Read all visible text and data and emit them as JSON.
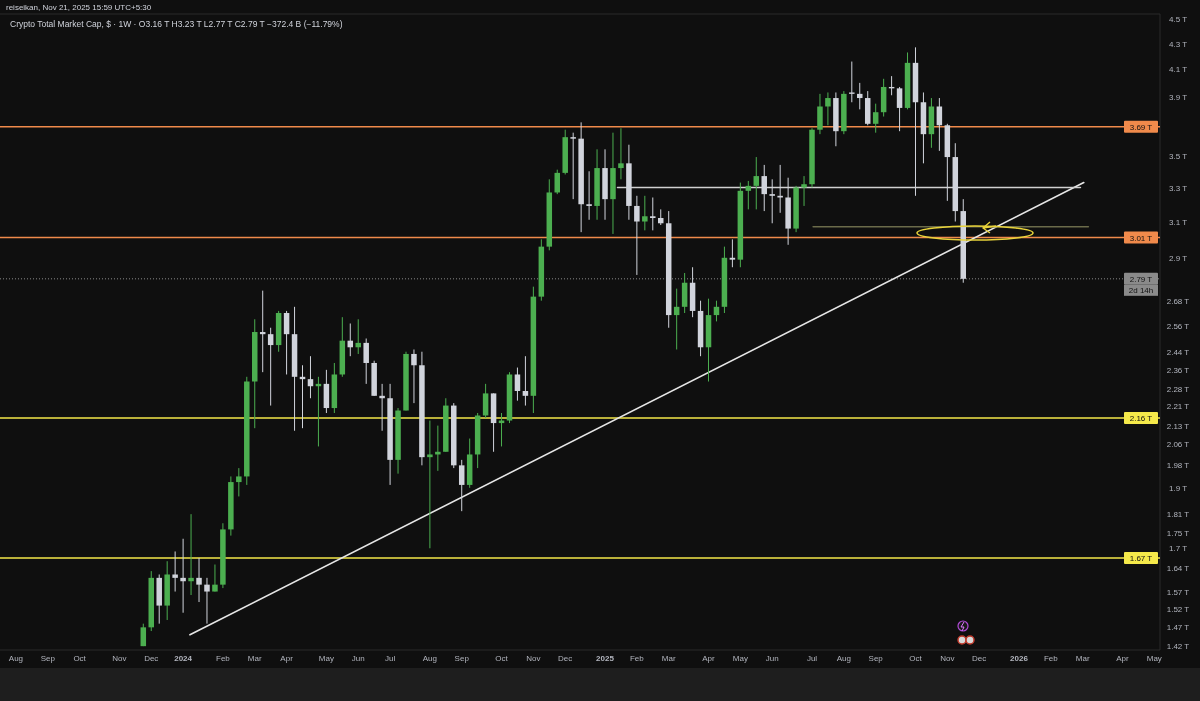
{
  "chart_data": {
    "type": "candlestick",
    "title": "Crypto Total Market Cap, $ · 1W · O3.16 T H3.23 T L2.77 T C2.79 T −372.4 B (−11.79%)",
    "subtitle": "reiseikan, Nov 21, 2025 15:59 UTC+5:30",
    "x": [
      "2023-11-27",
      "2023-12-04",
      "2023-12-11",
      "2023-12-18",
      "2023-12-25",
      "2024-01-01",
      "2024-01-08",
      "2024-01-15",
      "2024-01-22",
      "2024-01-29",
      "2024-02-05",
      "2024-02-12",
      "2024-02-19",
      "2024-02-26",
      "2024-03-04",
      "2024-03-11",
      "2024-03-18",
      "2024-03-25",
      "2024-04-01",
      "2024-04-08",
      "2024-04-15",
      "2024-04-22",
      "2024-04-29",
      "2024-05-06",
      "2024-05-13",
      "2024-05-20",
      "2024-05-27",
      "2024-06-03",
      "2024-06-10",
      "2024-06-17",
      "2024-06-24",
      "2024-07-01",
      "2024-07-08",
      "2024-07-15",
      "2024-07-22",
      "2024-07-29",
      "2024-08-05",
      "2024-08-12",
      "2024-08-19",
      "2024-08-26",
      "2024-09-02",
      "2024-09-09",
      "2024-09-16",
      "2024-09-23",
      "2024-09-30",
      "2024-10-07",
      "2024-10-14",
      "2024-10-21",
      "2024-10-28",
      "2024-11-04",
      "2024-11-11",
      "2024-11-18",
      "2024-11-25",
      "2024-12-02",
      "2024-12-09",
      "2024-12-16",
      "2024-12-23",
      "2024-12-30",
      "2025-01-06",
      "2025-01-13",
      "2025-01-20",
      "2025-01-27",
      "2025-02-03",
      "2025-02-10",
      "2025-02-17",
      "2025-02-24",
      "2025-03-03",
      "2025-03-10",
      "2025-03-17",
      "2025-03-24",
      "2025-03-31",
      "2025-04-07",
      "2025-04-14",
      "2025-04-21",
      "2025-04-28",
      "2025-05-05",
      "2025-05-12",
      "2025-05-19",
      "2025-05-26",
      "2025-06-02",
      "2025-06-09",
      "2025-06-16",
      "2025-06-23",
      "2025-06-30",
      "2025-07-07",
      "2025-07-14",
      "2025-07-21",
      "2025-07-28",
      "2025-08-04",
      "2025-08-11",
      "2025-08-18",
      "2025-08-25",
      "2025-09-01",
      "2025-09-08",
      "2025-09-15",
      "2025-09-22",
      "2025-09-29",
      "2025-10-06",
      "2025-10-13",
      "2025-10-20",
      "2025-10-27",
      "2025-11-03",
      "2025-11-10",
      "2025-11-17"
    ],
    "ohlc": [
      [
        1.42,
        1.48,
        1.42,
        1.47
      ],
      [
        1.47,
        1.63,
        1.46,
        1.61
      ],
      [
        1.61,
        1.62,
        1.48,
        1.53
      ],
      [
        1.53,
        1.66,
        1.49,
        1.62
      ],
      [
        1.62,
        1.69,
        1.57,
        1.61
      ],
      [
        1.61,
        1.73,
        1.51,
        1.6
      ],
      [
        1.6,
        1.81,
        1.56,
        1.61
      ],
      [
        1.61,
        1.67,
        1.54,
        1.59
      ],
      [
        1.59,
        1.61,
        1.48,
        1.57
      ],
      [
        1.57,
        1.65,
        1.57,
        1.59
      ],
      [
        1.59,
        1.78,
        1.58,
        1.76
      ],
      [
        1.76,
        1.94,
        1.74,
        1.92
      ],
      [
        1.92,
        1.97,
        1.87,
        1.94
      ],
      [
        1.94,
        2.33,
        1.91,
        2.31
      ],
      [
        2.31,
        2.59,
        2.12,
        2.53
      ],
      [
        2.53,
        2.73,
        2.35,
        2.52
      ],
      [
        2.52,
        2.55,
        2.21,
        2.47
      ],
      [
        2.47,
        2.63,
        2.44,
        2.62
      ],
      [
        2.62,
        2.63,
        2.34,
        2.52
      ],
      [
        2.52,
        2.65,
        2.11,
        2.33
      ],
      [
        2.33,
        2.38,
        2.12,
        2.32
      ],
      [
        2.32,
        2.42,
        2.24,
        2.29
      ],
      [
        2.29,
        2.33,
        2.05,
        2.3
      ],
      [
        2.3,
        2.36,
        2.18,
        2.2
      ],
      [
        2.2,
        2.39,
        2.18,
        2.34
      ],
      [
        2.34,
        2.6,
        2.33,
        2.49
      ],
      [
        2.49,
        2.57,
        2.42,
        2.46
      ],
      [
        2.46,
        2.59,
        2.43,
        2.48
      ],
      [
        2.48,
        2.5,
        2.3,
        2.39
      ],
      [
        2.39,
        2.4,
        2.25,
        2.25
      ],
      [
        2.25,
        2.3,
        2.11,
        2.24
      ],
      [
        2.24,
        2.3,
        1.91,
        2.0
      ],
      [
        2.0,
        2.2,
        1.95,
        2.19
      ],
      [
        2.19,
        2.44,
        2.19,
        2.43
      ],
      [
        2.43,
        2.45,
        2.22,
        2.38
      ],
      [
        2.38,
        2.44,
        1.98,
        2.01
      ],
      [
        2.01,
        2.15,
        1.7,
        2.02
      ],
      [
        2.02,
        2.13,
        1.96,
        2.03
      ],
      [
        2.03,
        2.24,
        2.03,
        2.21
      ],
      [
        2.21,
        2.22,
        1.97,
        1.98
      ],
      [
        1.98,
        2.0,
        1.82,
        1.91
      ],
      [
        1.91,
        2.08,
        1.9,
        2.02
      ],
      [
        2.02,
        2.18,
        1.97,
        2.17
      ],
      [
        2.17,
        2.3,
        2.16,
        2.26
      ],
      [
        2.26,
        2.26,
        2.03,
        2.14
      ],
      [
        2.14,
        2.18,
        2.05,
        2.15
      ],
      [
        2.15,
        2.35,
        2.14,
        2.34
      ],
      [
        2.34,
        2.37,
        2.23,
        2.27
      ],
      [
        2.27,
        2.42,
        2.21,
        2.25
      ],
      [
        2.25,
        2.75,
        2.18,
        2.7
      ],
      [
        2.7,
        3.0,
        2.68,
        2.96
      ],
      [
        2.96,
        3.35,
        2.94,
        3.27
      ],
      [
        3.27,
        3.41,
        3.26,
        3.39
      ],
      [
        3.39,
        3.67,
        3.38,
        3.62
      ],
      [
        3.62,
        3.65,
        3.23,
        3.61
      ],
      [
        3.61,
        3.72,
        3.04,
        3.2
      ],
      [
        3.2,
        3.4,
        3.11,
        3.19
      ],
      [
        3.19,
        3.54,
        3.11,
        3.42
      ],
      [
        3.42,
        3.54,
        3.11,
        3.23
      ],
      [
        3.23,
        3.65,
        3.03,
        3.42
      ],
      [
        3.42,
        3.68,
        3.35,
        3.45
      ],
      [
        3.45,
        3.57,
        3.11,
        3.19
      ],
      [
        3.19,
        3.25,
        2.81,
        3.1
      ],
      [
        3.1,
        3.25,
        3.05,
        3.13
      ],
      [
        3.13,
        3.24,
        3.05,
        3.12
      ],
      [
        3.12,
        3.17,
        3.08,
        3.09
      ],
      [
        3.09,
        3.16,
        2.55,
        2.61
      ],
      [
        2.61,
        2.74,
        2.45,
        2.65
      ],
      [
        2.65,
        2.82,
        2.62,
        2.77
      ],
      [
        2.77,
        2.85,
        2.6,
        2.63
      ],
      [
        2.63,
        2.68,
        2.42,
        2.46
      ],
      [
        2.46,
        2.69,
        2.31,
        2.61
      ],
      [
        2.61,
        2.68,
        2.58,
        2.65
      ],
      [
        2.65,
        2.96,
        2.62,
        2.9
      ],
      [
        2.9,
        3.0,
        2.85,
        2.89
      ],
      [
        2.89,
        3.33,
        2.85,
        3.28
      ],
      [
        3.28,
        3.34,
        3.17,
        3.31
      ],
      [
        3.31,
        3.49,
        3.17,
        3.37
      ],
      [
        3.37,
        3.44,
        3.16,
        3.26
      ],
      [
        3.26,
        3.35,
        3.09,
        3.25
      ],
      [
        3.25,
        3.44,
        3.15,
        3.24
      ],
      [
        3.24,
        3.36,
        2.97,
        3.06
      ],
      [
        3.06,
        3.31,
        3.04,
        3.3
      ],
      [
        3.3,
        3.37,
        3.19,
        3.32
      ],
      [
        3.32,
        3.68,
        3.3,
        3.67
      ],
      [
        3.67,
        3.92,
        3.64,
        3.83
      ],
      [
        3.83,
        3.93,
        3.7,
        3.89
      ],
      [
        3.89,
        3.93,
        3.56,
        3.66
      ],
      [
        3.66,
        3.94,
        3.64,
        3.92
      ],
      [
        3.93,
        4.16,
        3.86,
        3.92
      ],
      [
        3.92,
        4.0,
        3.81,
        3.89
      ],
      [
        3.89,
        3.94,
        3.7,
        3.71
      ],
      [
        3.71,
        3.85,
        3.65,
        3.79
      ],
      [
        3.79,
        4.03,
        3.76,
        3.97
      ],
      [
        3.97,
        4.05,
        3.91,
        3.96
      ],
      [
        3.96,
        3.97,
        3.66,
        3.82
      ],
      [
        3.82,
        4.23,
        3.81,
        4.15
      ],
      [
        4.15,
        4.27,
        3.25,
        3.86
      ],
      [
        3.86,
        3.93,
        3.45,
        3.64
      ],
      [
        3.64,
        3.89,
        3.55,
        3.83
      ],
      [
        3.83,
        3.89,
        3.53,
        3.7
      ],
      [
        3.7,
        3.71,
        3.22,
        3.49
      ],
      [
        3.49,
        3.58,
        3.1,
        3.16
      ],
      [
        3.16,
        3.23,
        2.77,
        2.79
      ]
    ],
    "colors": [
      "#4caf50",
      "#4caf50",
      "#d1d4dc",
      "#4caf50",
      "#d1d4dc",
      "#d1d4dc",
      "#4caf50",
      "#d1d4dc",
      "#d1d4dc",
      "#4caf50",
      "#4caf50",
      "#4caf50",
      "#4caf50",
      "#4caf50",
      "#4caf50",
      "#d1d4dc",
      "#d1d4dc",
      "#4caf50",
      "#d1d4dc",
      "#d1d4dc",
      "#d1d4dc",
      "#d1d4dc",
      "#4caf50",
      "#d1d4dc",
      "#4caf50",
      "#4caf50",
      "#d1d4dc",
      "#4caf50",
      "#d1d4dc",
      "#d1d4dc",
      "#d1d4dc",
      "#d1d4dc",
      "#4caf50",
      "#4caf50",
      "#d1d4dc",
      "#d1d4dc",
      "#4caf50",
      "#4caf50",
      "#4caf50",
      "#d1d4dc",
      "#d1d4dc",
      "#4caf50",
      "#4caf50",
      "#4caf50",
      "#d1d4dc",
      "#4caf50",
      "#4caf50",
      "#d1d4dc",
      "#d1d4dc",
      "#4caf50",
      "#4caf50",
      "#4caf50",
      "#4caf50",
      "#4caf50",
      "#d1d4dc",
      "#d1d4dc",
      "#d1d4dc",
      "#4caf50",
      "#d1d4dc",
      "#4caf50",
      "#4caf50",
      "#d1d4dc",
      "#d1d4dc",
      "#4caf50",
      "#d1d4dc",
      "#d1d4dc",
      "#d1d4dc",
      "#4caf50",
      "#4caf50",
      "#d1d4dc",
      "#d1d4dc",
      "#4caf50",
      "#4caf50",
      "#4caf50",
      "#d1d4dc",
      "#4caf50",
      "#4caf50",
      "#4caf50",
      "#d1d4dc",
      "#d1d4dc",
      "#d1d4dc",
      "#d1d4dc",
      "#4caf50",
      "#4caf50",
      "#4caf50",
      "#4caf50",
      "#4caf50",
      "#d1d4dc",
      "#4caf50",
      "#d1d4dc",
      "#d1d4dc",
      "#d1d4dc",
      "#4caf50",
      "#4caf50",
      "#d1d4dc",
      "#d1d4dc",
      "#4caf50",
      "#d1d4dc",
      "#d1d4dc",
      "#4caf50",
      "#d1d4dc",
      "#d1d4dc",
      "#d1d4dc",
      "#d1d4dc"
    ],
    "series": [
      {
        "type": "line",
        "x": [
          "2024-01-07",
          "2026-03-03"
        ],
        "values": [
          1.45,
          3.33
        ],
        "color": "#e6e6e6"
      },
      {
        "type": "line",
        "x": [
          "2025-01-17",
          "2026-02-28"
        ],
        "values": [
          3.3,
          3.3
        ],
        "color": "#d0d0d0"
      },
      {
        "type": "line",
        "x": [
          "2025-07-08",
          "2026-03-07"
        ],
        "values": [
          3.07,
          3.07
        ],
        "color": "#6b6b4a"
      }
    ],
    "log": true,
    "ylim": [
      1.41,
      4.54
    ],
    "yticks": [
      {
        "value": 4.5,
        "label": "4.5 T"
      },
      {
        "value": 4.3,
        "label": "4.3 T"
      },
      {
        "value": 4.1,
        "label": "4.1 T"
      },
      {
        "value": 3.9,
        "label": "3.9 T"
      },
      {
        "value": 3.5,
        "label": "3.5 T"
      },
      {
        "value": 3.3,
        "label": "3.3 T"
      },
      {
        "value": 3.1,
        "label": "3.1 T"
      },
      {
        "value": 2.9,
        "label": "2.9 T"
      },
      {
        "value": 2.68,
        "label": "2.68 T"
      },
      {
        "value": 2.56,
        "label": "2.56 T"
      },
      {
        "value": 2.44,
        "label": "2.44 T"
      },
      {
        "value": 2.36,
        "label": "2.36 T"
      },
      {
        "value": 2.28,
        "label": "2.28 T"
      },
      {
        "value": 2.21,
        "label": "2.21 T"
      },
      {
        "value": 2.13,
        "label": "2.13 T"
      },
      {
        "value": 2.06,
        "label": "2.06 T"
      },
      {
        "value": 1.98,
        "label": "1.98 T"
      },
      {
        "value": 1.9,
        "label": "1.9 T"
      },
      {
        "value": 1.81,
        "label": "1.81 T"
      },
      {
        "value": 1.75,
        "label": "1.75 T"
      },
      {
        "value": 1.7,
        "label": "1.7 T"
      },
      {
        "value": 1.64,
        "label": "1.64 T"
      },
      {
        "value": 1.57,
        "label": "1.57 T"
      },
      {
        "value": 1.52,
        "label": "1.52 T"
      },
      {
        "value": 1.47,
        "label": "1.47 T"
      },
      {
        "value": 1.42,
        "label": "1.42 T"
      }
    ],
    "xlim": [
      "2023-07-24",
      "2026-05-09"
    ],
    "xticks": [
      {
        "value": "2023-08-07",
        "label": "Aug"
      },
      {
        "value": "2023-09-04",
        "label": "Sep"
      },
      {
        "value": "2023-10-02",
        "label": "Oct"
      },
      {
        "value": "2023-11-06",
        "label": "Nov"
      },
      {
        "value": "2023-12-04",
        "label": "Dec"
      },
      {
        "value": "2024-01-01",
        "label": "2024"
      },
      {
        "value": "2024-02-05",
        "label": "Feb"
      },
      {
        "value": "2024-03-04",
        "label": "Mar"
      },
      {
        "value": "2024-04-01",
        "label": "Apr"
      },
      {
        "value": "2024-05-06",
        "label": "May"
      },
      {
        "value": "2024-06-03",
        "label": "Jun"
      },
      {
        "value": "2024-07-01",
        "label": "Jul"
      },
      {
        "value": "2024-08-05",
        "label": "Aug"
      },
      {
        "value": "2024-09-02",
        "label": "Sep"
      },
      {
        "value": "2024-10-07",
        "label": "Oct"
      },
      {
        "value": "2024-11-04",
        "label": "Nov"
      },
      {
        "value": "2024-12-02",
        "label": "Dec"
      },
      {
        "value": "2025-01-06",
        "label": "2025"
      },
      {
        "value": "2025-02-03",
        "label": "Feb"
      },
      {
        "value": "2025-03-03",
        "label": "Mar"
      },
      {
        "value": "2025-04-07",
        "label": "Apr"
      },
      {
        "value": "2025-05-05",
        "label": "May"
      },
      {
        "value": "2025-06-02",
        "label": "Jun"
      },
      {
        "value": "2025-07-07",
        "label": "Jul"
      },
      {
        "value": "2025-08-04",
        "label": "Aug"
      },
      {
        "value": "2025-09-01",
        "label": "Sep"
      },
      {
        "value": "2025-10-06",
        "label": "Oct"
      },
      {
        "value": "2025-11-03",
        "label": "Nov"
      },
      {
        "value": "2025-12-01",
        "label": "Dec"
      },
      {
        "value": "2026-01-05",
        "label": "2026"
      },
      {
        "value": "2026-02-02",
        "label": "Feb"
      },
      {
        "value": "2026-03-02",
        "label": "Mar"
      },
      {
        "value": "2026-04-06",
        "label": "Apr"
      },
      {
        "value": "2026-05-04",
        "label": "May"
      }
    ],
    "ref_lines": [
      {
        "axis": "y",
        "value": 3.69,
        "label": "3.69 T",
        "color": "#f08a4b"
      },
      {
        "axis": "y",
        "value": 3.01,
        "label": "3.01 T",
        "color": "#f08a4b"
      },
      {
        "axis": "y",
        "value": 2.16,
        "label": "2.16 T",
        "color": "#f5e94a"
      },
      {
        "axis": "y",
        "value": 1.67,
        "label": "1.67 T",
        "color": "#f5e94a"
      },
      {
        "axis": "y",
        "value": 2.79,
        "label": "2.79 T",
        "color": "#8a8a8a",
        "line_style": "dotted"
      }
    ],
    "annotations": [
      "2d 14h"
    ]
  }
}
